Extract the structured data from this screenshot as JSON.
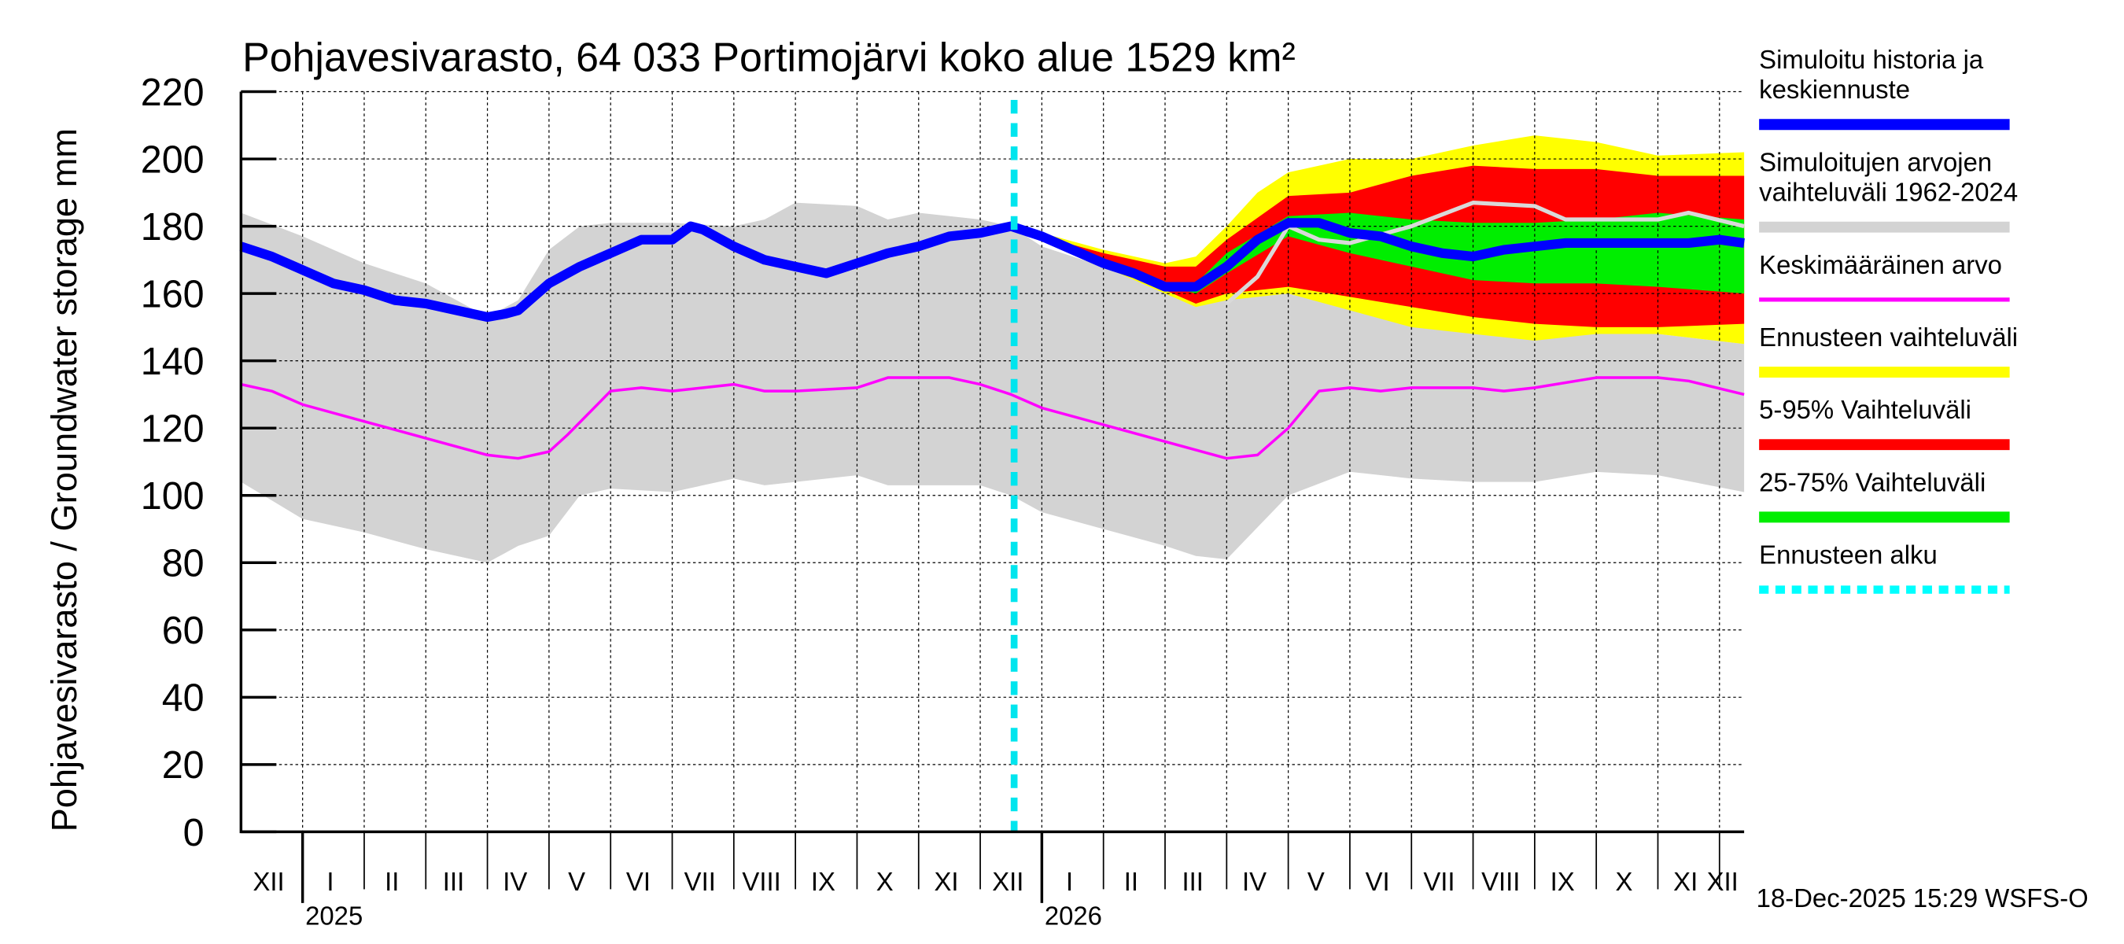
{
  "chart_data": {
    "type": "area",
    "title": "Pohjavesivarasto, 64 033 Portimojärvi koko alue 1529 km²",
    "ylabel": "Pohjavesivarasto / Groundwater storage   mm",
    "ylim": [
      0,
      220
    ],
    "yticks": [
      "0",
      "20",
      "40",
      "60",
      "80",
      "100",
      "120",
      "140",
      "160",
      "180",
      "200",
      "220"
    ],
    "x_unit": "months since 1-Dec-2024",
    "xlim": [
      0,
      24.4
    ],
    "month_labels": [
      "XII",
      "I",
      "II",
      "III",
      "IV",
      "V",
      "VI",
      "VII",
      "VIII",
      "IX",
      "X",
      "XI",
      "XII",
      "I",
      "II",
      "III",
      "IV",
      "V",
      "VI",
      "VII",
      "VIII",
      "IX",
      "X",
      "XI",
      "XII"
    ],
    "year_labels": [
      "2025",
      "2026"
    ],
    "forecast_start": 12.55,
    "footer": "18-Dec-2025 15:29 WSFS-O",
    "legend": [
      {
        "label": "Simuloitu historia ja keskiennuste",
        "color": "#0000ff",
        "style": "solid"
      },
      {
        "label": "Simuloitujen arvojen vaihteluväli 1962-2024",
        "color": "#d3d3d3",
        "style": "solid"
      },
      {
        "label": "Keskimääräinen arvo",
        "color": "#ff00ff",
        "style": "thin"
      },
      {
        "label": "Ennusteen vaihteluväli",
        "color": "#ffff00",
        "style": "solid"
      },
      {
        "label": "5-95% Vaihteluväli",
        "color": "#ff0000",
        "style": "solid"
      },
      {
        "label": "25-75% Vaihteluväli",
        "color": "#00ee00",
        "style": "solid"
      },
      {
        "label": "Ennusteen alku",
        "color": "#00ffff",
        "style": "dotted"
      }
    ],
    "series": {
      "historical_range": {
        "x": [
          0,
          1,
          2,
          3,
          4,
          4.5,
          5,
          5.5,
          6,
          7,
          8,
          8.5,
          9,
          10,
          10.5,
          11,
          12,
          12.5,
          13,
          14,
          15,
          15.5,
          16,
          17,
          18,
          19,
          20,
          21,
          22,
          23,
          24.4
        ],
        "upper": [
          184,
          177,
          169,
          163,
          153,
          158,
          173,
          180,
          181,
          181,
          180,
          182,
          187,
          186,
          182,
          184,
          182,
          180,
          174,
          168,
          162,
          160,
          165,
          176,
          175,
          170,
          165,
          158,
          152,
          148,
          145
        ],
        "lower": [
          104,
          93,
          89,
          84,
          80,
          85,
          88,
          100,
          102,
          101,
          105,
          103,
          104,
          106,
          103,
          103,
          103,
          100,
          95,
          90,
          85,
          82,
          81,
          100,
          107,
          105,
          104,
          104,
          107,
          106,
          101
        ]
      },
      "forecast_range": {
        "x": [
          12.55,
          13,
          14,
          15,
          15.5,
          16,
          16.5,
          17,
          18,
          19,
          20,
          21,
          22,
          23,
          24.4
        ],
        "upper": [
          180,
          178,
          173,
          169,
          171,
          180,
          190,
          196,
          200,
          200,
          204,
          207,
          205,
          201,
          202
        ],
        "lower": [
          180,
          177,
          168,
          160,
          156,
          158,
          159,
          160,
          155,
          150,
          148,
          146,
          148,
          148,
          145
        ]
      },
      "p5_95": {
        "x": [
          12.55,
          13,
          14,
          15,
          15.5,
          16,
          17,
          18,
          19,
          20,
          21,
          22,
          23,
          24.4
        ],
        "upper": [
          180,
          177,
          172,
          168,
          168,
          176,
          189,
          190,
          195,
          198,
          197,
          197,
          195,
          195
        ],
        "lower": [
          180,
          176,
          168,
          161,
          157,
          160,
          162,
          159,
          156,
          153,
          151,
          150,
          150,
          151
        ]
      },
      "p25_75": {
        "x": [
          15.3,
          15.5,
          16,
          17,
          18,
          19,
          20,
          21,
          22,
          23,
          24.4
        ],
        "upper": [
          162,
          163,
          172,
          183,
          184,
          182,
          181,
          181,
          182,
          184,
          182
        ],
        "lower": [
          161,
          160,
          166,
          177,
          172,
          168,
          164,
          163,
          163,
          162,
          160
        ]
      },
      "median_sim": {
        "x": [
          0,
          0.5,
          1,
          1.5,
          2,
          2.5,
          3,
          3.5,
          4,
          4.3,
          4.5,
          5,
          5.5,
          6,
          6.5,
          7,
          7.3,
          7.5,
          8,
          8.5,
          9,
          9.5,
          10,
          10.5,
          11,
          11.5,
          12,
          12.5,
          13,
          13.5,
          14,
          14.5,
          15,
          15.5,
          16,
          16.5,
          17,
          17.5,
          18,
          18.5,
          19,
          19.5,
          20,
          20.5,
          21,
          21.5,
          22,
          22.5,
          23,
          23.5,
          24,
          24.4
        ],
        "values": [
          174,
          171,
          167,
          163,
          161,
          158,
          157,
          155,
          153,
          154,
          155,
          163,
          168,
          172,
          176,
          176,
          180,
          179,
          174,
          170,
          168,
          166,
          169,
          172,
          174,
          177,
          178,
          180,
          177,
          173,
          169,
          166,
          162,
          162,
          168,
          176,
          181,
          181,
          178,
          177,
          174,
          172,
          171,
          173,
          174,
          175,
          175,
          175,
          175,
          175,
          176,
          175
        ]
      },
      "mean": {
        "x": [
          0,
          0.5,
          1,
          2,
          3,
          4,
          4.5,
          5,
          5.3,
          6,
          6.5,
          7,
          7.5,
          8,
          8.5,
          9,
          10,
          10.5,
          11,
          11.5,
          12,
          12.5,
          13,
          14,
          15,
          16,
          16.5,
          17,
          17.5,
          18,
          18.5,
          19,
          20,
          20.5,
          21,
          22,
          23,
          23.5,
          24.4
        ],
        "values": [
          133,
          131,
          127,
          122,
          117,
          112,
          111,
          113,
          118,
          131,
          132,
          131,
          132,
          133,
          131,
          131,
          132,
          135,
          135,
          135,
          133,
          130,
          126,
          121,
          116,
          111,
          112,
          120,
          131,
          132,
          131,
          132,
          132,
          131,
          132,
          135,
          135,
          134,
          130
        ]
      },
      "light_trace": {
        "x": [
          16,
          16.5,
          17,
          17.5,
          18,
          19,
          20,
          21,
          21.5,
          22,
          23,
          23.5,
          24.4
        ],
        "values": [
          157,
          165,
          180,
          176,
          175,
          180,
          187,
          186,
          182,
          182,
          182,
          184,
          180
        ]
      }
    }
  }
}
